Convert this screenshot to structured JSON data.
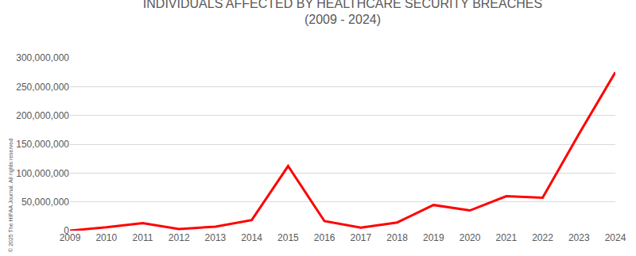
{
  "chart_data": {
    "type": "line",
    "title": "INDIVIDUALS AFFECTED BY HEALTHCARE SECURITY BREACHES",
    "subtitle": "(2009 - 2024)",
    "categories": [
      "2009",
      "2010",
      "2011",
      "2012",
      "2013",
      "2014",
      "2015",
      "2016",
      "2017",
      "2018",
      "2019",
      "2020",
      "2021",
      "2022",
      "2023",
      "2024"
    ],
    "values": [
      135000,
      5900000,
      13200000,
      2800000,
      7000000,
      18400000,
      112100000,
      16500000,
      5100000,
      14200000,
      44500000,
      35000000,
      59800000,
      57000000,
      168000000,
      275000000
    ],
    "color": "#ff0000",
    "ylim": [
      0,
      300000000
    ],
    "yticks": [
      0,
      {
        "value": 50000000,
        "label": "50,000,000"
      },
      {
        "value": 100000000,
        "label": "100,000,000"
      },
      {
        "value": 150000000,
        "label": "150,000,000"
      },
      {
        "value": 200000000,
        "label": "200,000,000"
      },
      {
        "value": 250000000,
        "label": "250,000,000"
      },
      {
        "value": 300000000,
        "label": "300,000,000"
      }
    ],
    "grid": true,
    "annotations": [
      "© 2025 The HIPAA Journal. All rights reserved"
    ]
  }
}
